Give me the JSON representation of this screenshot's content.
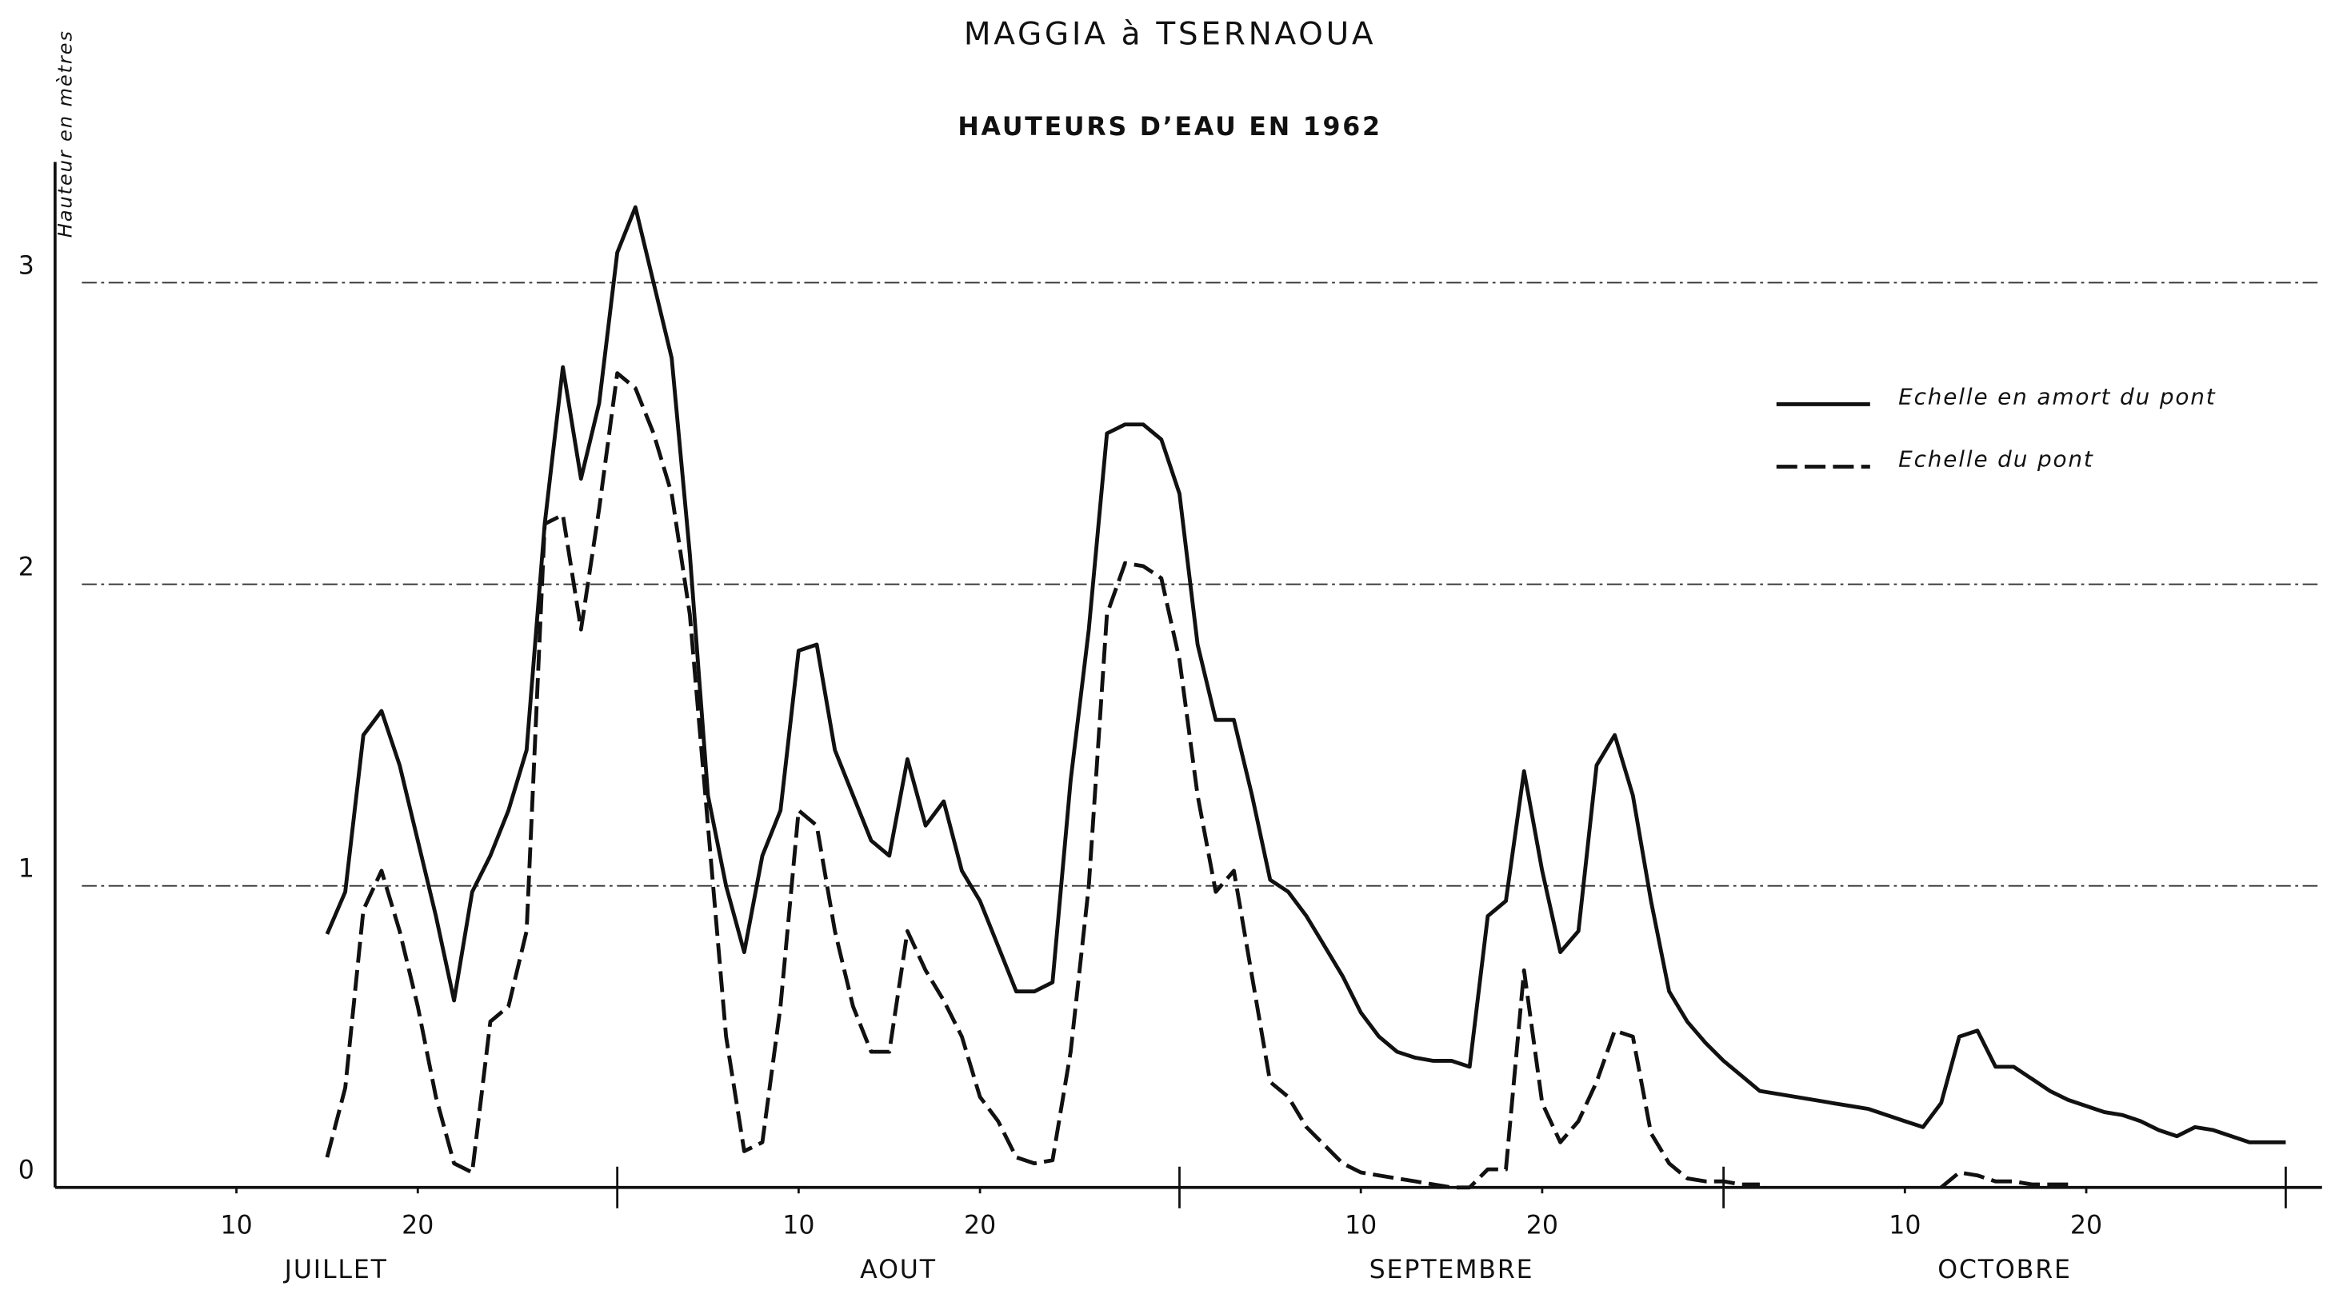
{
  "chart_data": {
    "type": "line",
    "title": "MAGGIA à TSERNAOUA",
    "subtitle": "HAUTEURS D’EAU EN 1962",
    "y_label": "Hauteur en mètres",
    "months": [
      "JUILLET",
      "AOUT",
      "SEPTEMBRE",
      "OCTOBRE"
    ],
    "month_ticks": [
      31,
      62,
      92,
      123
    ],
    "xlim": [
      0,
      125
    ],
    "xticks": [
      10,
      20,
      {
        "value": 41,
        "label": "10"
      },
      {
        "value": 51,
        "label": "20"
      },
      {
        "value": 72,
        "label": "10"
      },
      {
        "value": 82,
        "label": "20"
      },
      {
        "value": 102,
        "label": "10"
      },
      {
        "value": 112,
        "label": "20"
      }
    ],
    "ylim": [
      0,
      3.4
    ],
    "yticks": [
      0,
      1,
      2,
      3
    ],
    "grid": true,
    "legend": "upper right",
    "x": [
      15,
      16,
      17,
      18,
      19,
      20,
      21,
      22,
      23,
      24,
      25,
      26,
      27,
      28,
      29,
      30,
      31,
      32,
      33,
      34,
      35,
      36,
      37,
      38,
      39,
      40,
      41,
      42,
      43,
      44,
      45,
      46,
      47,
      48,
      49,
      50,
      51,
      52,
      53,
      54,
      55,
      56,
      57,
      58,
      59,
      60,
      61,
      62,
      63,
      64,
      65,
      66,
      67,
      68,
      69,
      70,
      71,
      72,
      73,
      74,
      75,
      76,
      77,
      78,
      79,
      80,
      81,
      82,
      83,
      84,
      85,
      86,
      87,
      88,
      89,
      90,
      91,
      92,
      93,
      94,
      95,
      96,
      97,
      98,
      99,
      100,
      101,
      102,
      103,
      104,
      105,
      106,
      107,
      108,
      109,
      110,
      111,
      112,
      113,
      114,
      115,
      116,
      117,
      118,
      119,
      120,
      121,
      122,
      123
    ],
    "series": [
      {
        "name": "Echelle en amort du pont",
        "color": "#111111",
        "dash": "solid",
        "values": [
          0.84,
          0.98,
          1.5,
          1.58,
          1.4,
          1.15,
          0.9,
          0.62,
          0.98,
          1.1,
          1.25,
          1.45,
          2.2,
          2.72,
          2.35,
          2.6,
          3.1,
          3.25,
          3,
          2.75,
          2.1,
          1.3,
          1,
          0.78,
          1.1,
          1.25,
          1.78,
          1.8,
          1.45,
          1.3,
          1.15,
          1.1,
          1.42,
          1.2,
          1.28,
          1.05,
          0.95,
          0.8,
          0.65,
          0.65,
          0.68,
          1.35,
          1.85,
          2.5,
          2.53,
          2.53,
          2.48,
          2.3,
          1.8,
          1.55,
          1.55,
          1.3,
          1.02,
          0.98,
          0.9,
          0.8,
          0.7,
          0.58,
          0.5,
          0.45,
          0.43,
          0.42,
          0.42,
          0.4,
          0.9,
          0.95,
          1.38,
          1.05,
          0.78,
          0.85,
          1.4,
          1.5,
          1.3,
          0.95,
          0.65,
          0.55,
          0.48,
          0.42,
          0.37,
          0.32,
          0.31,
          0.3,
          0.29,
          0.28,
          0.27,
          0.26,
          0.24,
          0.22,
          0.2,
          0.28,
          0.5,
          0.52,
          0.4,
          0.4,
          0.36,
          0.32,
          0.29,
          0.27,
          0.25,
          0.24,
          0.22,
          0.19,
          0.17,
          0.2,
          0.19,
          0.17,
          0.15,
          0.15,
          0.15
        ]
      },
      {
        "name": "Echelle du pont",
        "color": "#111111",
        "dash": "dashed",
        "values": [
          0.1,
          0.33,
          0.92,
          1.05,
          0.85,
          0.6,
          0.3,
          0.08,
          0.05,
          0.55,
          0.6,
          0.85,
          2.2,
          2.23,
          1.85,
          2.25,
          2.7,
          2.65,
          2.5,
          2.3,
          1.9,
          1.2,
          0.5,
          0.12,
          0.15,
          0.6,
          1.25,
          1.2,
          0.85,
          0.6,
          0.45,
          0.45,
          0.85,
          0.72,
          0.62,
          0.5,
          0.3,
          0.22,
          0.1,
          0.08,
          0.09,
          0.45,
          1,
          1.9,
          2.07,
          2.06,
          2.02,
          1.75,
          1.3,
          0.98,
          1.05,
          0.7,
          0.35,
          0.3,
          0.2,
          0.14,
          0.08,
          0.05,
          0.04,
          0.03,
          0.02,
          0.01,
          0,
          0,
          0.06,
          0.06,
          0.72,
          0.28,
          0.15,
          0.22,
          0.35,
          0.52,
          0.5,
          0.18,
          0.08,
          0.03,
          0.02,
          0.02,
          0.01,
          0.01,
          null,
          null,
          null,
          null,
          null,
          null,
          null,
          null,
          null,
          0,
          0.05,
          0.04,
          0.02,
          0.02,
          0.01,
          0.01,
          0.01,
          null,
          null,
          null,
          null,
          null,
          null,
          null,
          null,
          null,
          null,
          null,
          null
        ]
      }
    ]
  }
}
